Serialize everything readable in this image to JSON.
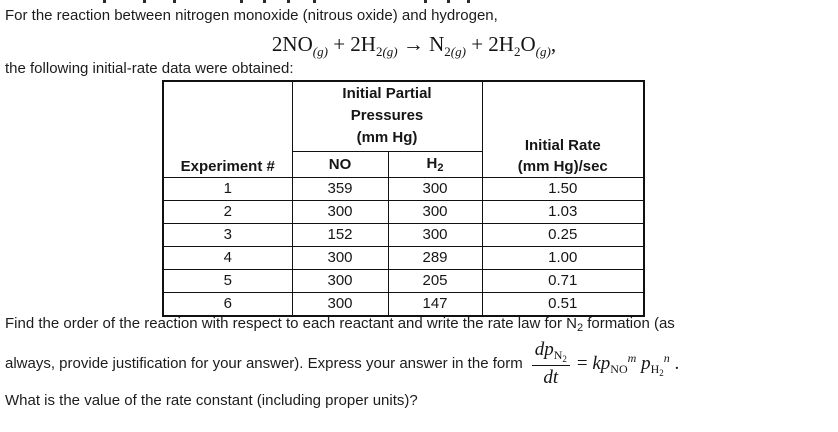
{
  "intro": {
    "line1": "For the reaction between nitrogen monoxide (nitrous oxide) and hydrogen,",
    "line2": "the following initial-rate data were obtained:"
  },
  "equation": {
    "tokens": [
      {
        "t": "2NO",
        "style": "n"
      },
      {
        "t": "(g)",
        "style": "sub-i"
      },
      {
        "t": " + 2H",
        "style": "n"
      },
      {
        "t": "2",
        "style": "sub"
      },
      {
        "t": "(g)",
        "style": "sub-i"
      },
      {
        "t": " → N",
        "style": "n"
      },
      {
        "t": "2",
        "style": "sub"
      },
      {
        "t": "(g)",
        "style": "sub-i"
      },
      {
        "t": " + 2H",
        "style": "n"
      },
      {
        "t": "2",
        "style": "sub"
      },
      {
        "t": "O",
        "style": "n"
      },
      {
        "t": "(g)",
        "style": "sub-i"
      },
      {
        "t": ",",
        "style": "n"
      }
    ]
  },
  "table": {
    "experiment_header": "Experiment #",
    "group_header_lines": [
      "Initial Partial",
      "Pressures",
      "(mm Hg)"
    ],
    "no_header": "NO",
    "h2_header_base": "H",
    "h2_header_sub": "2",
    "rate_header_line1": "Initial Rate",
    "rate_header_line2": "(mm Hg)/sec",
    "rows": [
      {
        "experiment": "1",
        "no": "359",
        "h2": "300",
        "rate": "1.50"
      },
      {
        "experiment": "2",
        "no": "300",
        "h2": "300",
        "rate": "1.03"
      },
      {
        "experiment": "3",
        "no": "152",
        "h2": "300",
        "rate": "0.25"
      },
      {
        "experiment": "4",
        "no": "300",
        "h2": "289",
        "rate": "1.00"
      },
      {
        "experiment": "5",
        "no": "300",
        "h2": "205",
        "rate": "0.71"
      },
      {
        "experiment": "6",
        "no": "300",
        "h2": "147",
        "rate": "0.51"
      }
    ]
  },
  "question": {
    "find_line_pre": "Find the order of the reaction with respect to each reactant and write the rate law for N",
    "find_line_sub": "2",
    "find_line_post": " formation (as",
    "always_line": "always, provide justification for your answer). Express your answer in the form",
    "rate_constant_line": "What is the value of the rate constant (including proper units)?"
  },
  "formula": {
    "numerator_tokens": [
      {
        "t": "dp",
        "style": "i"
      },
      {
        "t": "N",
        "style": "sub"
      },
      {
        "t": "2",
        "style": "subsub"
      }
    ],
    "denominator_tokens": [
      {
        "t": "dt",
        "style": "i"
      }
    ],
    "rhs_tokens": [
      {
        "t": "= ",
        "style": "n"
      },
      {
        "t": "kp",
        "style": "i"
      },
      {
        "t": "NO",
        "style": "sub"
      },
      {
        "t": "m",
        "style": "sup-i"
      },
      {
        "t": " p",
        "style": "i"
      },
      {
        "t": "H",
        "style": "sub"
      },
      {
        "t": "2",
        "style": "subsub"
      },
      {
        "t": "n",
        "style": "sup-i"
      },
      {
        "t": " .",
        "style": "n"
      }
    ]
  }
}
